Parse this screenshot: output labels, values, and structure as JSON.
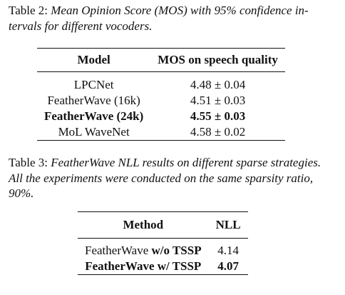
{
  "table2": {
    "caption_label": "Table 2: ",
    "caption_text": "Mean Opinion Score (MOS) with 95% confidence in-tervals for different vocoders.",
    "caption_line1": "Mean Opinion Score (MOS) with 95% confidence in-",
    "caption_line2": "tervals for different vocoders.",
    "headers": [
      "Model",
      "MOS on speech quality"
    ],
    "rows": [
      {
        "model": "LPCNet",
        "mos": "4.48 ± 0.04",
        "bold": false
      },
      {
        "model": "FeatherWave (16k)",
        "mos": "4.51 ± 0.03",
        "bold": false
      },
      {
        "model": "FeatherWave (24k)",
        "mos": "4.55 ± 0.03",
        "bold": true
      },
      {
        "model": "MoL WaveNet",
        "mos": "4.58 ± 0.02",
        "bold": false
      }
    ]
  },
  "table3": {
    "caption_label": "Table 3: ",
    "caption_line1": "FeatherWave NLL results on different sparse strategies.",
    "caption_line2": "All the experiments were conducted on the same sparsity ratio,",
    "caption_line3": "90%.",
    "headers": [
      "Method",
      "NLL"
    ],
    "rows": [
      {
        "method_plain": "FeatherWave ",
        "method_bold": "w/o TSSP",
        "nll": "4.14",
        "bold": false
      },
      {
        "method_plain": "FeatherWave w/  TSSP",
        "method_bold": "",
        "nll": "4.07",
        "bold": true
      }
    ]
  }
}
